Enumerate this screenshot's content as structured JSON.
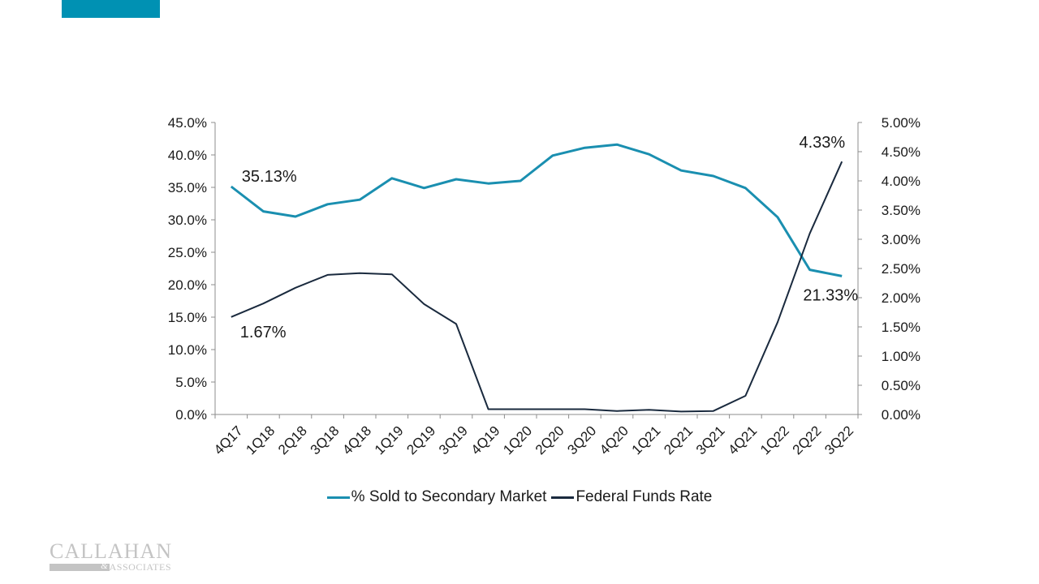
{
  "slide": {
    "accent_color": "#0091b3"
  },
  "logo": {
    "name": "CALLAHAN",
    "amp": "&",
    "sub": "ASSOCIATES"
  },
  "chart_data": {
    "type": "line",
    "title": "",
    "xlabel": "",
    "categories": [
      "4Q17",
      "1Q18",
      "2Q18",
      "3Q18",
      "4Q18",
      "1Q19",
      "2Q19",
      "3Q19",
      "4Q19",
      "1Q20",
      "2Q20",
      "3Q20",
      "4Q20",
      "1Q21",
      "2Q21",
      "3Q21",
      "4Q21",
      "1Q22",
      "2Q22",
      "3Q22"
    ],
    "y_left": {
      "range": [
        0,
        45
      ],
      "step": 5,
      "ticks": [
        "0.0%",
        "5.0%",
        "10.0%",
        "15.0%",
        "20.0%",
        "25.0%",
        "30.0%",
        "35.0%",
        "40.0%",
        "45.0%"
      ]
    },
    "y_right": {
      "range": [
        0,
        5
      ],
      "step": 0.5,
      "ticks": [
        "0.00%",
        "0.50%",
        "1.00%",
        "1.50%",
        "2.00%",
        "2.50%",
        "3.00%",
        "3.50%",
        "4.00%",
        "4.50%",
        "5.00%"
      ]
    },
    "grid": false,
    "legend_position": "bottom",
    "series": [
      {
        "name": "% Sold to Secondary Market",
        "axis": "left",
        "color": "#1a8fb0",
        "values": [
          35.13,
          31.3,
          30.5,
          32.4,
          33.1,
          36.4,
          34.9,
          36.25,
          35.6,
          36.0,
          39.9,
          41.1,
          41.6,
          40.1,
          37.6,
          36.75,
          34.9,
          30.4,
          22.3,
          21.33
        ]
      },
      {
        "name": "Federal Funds Rate",
        "axis": "right",
        "color": "#1a2a3e",
        "values": [
          1.67,
          1.9,
          2.17,
          2.39,
          2.42,
          2.4,
          1.89,
          1.55,
          0.09,
          0.09,
          0.09,
          0.09,
          0.06,
          0.08,
          0.05,
          0.06,
          0.32,
          1.58,
          3.1,
          4.33
        ]
      }
    ],
    "annotations": [
      {
        "series": 0,
        "index": 0,
        "text": "35.13%",
        "placement": "above-right"
      },
      {
        "series": 0,
        "index": 19,
        "text": "21.33%",
        "placement": "below"
      },
      {
        "series": 1,
        "index": 0,
        "text": "1.67%",
        "placement": "below-right"
      },
      {
        "series": 1,
        "index": 19,
        "text": "4.33%",
        "placement": "above"
      }
    ]
  }
}
